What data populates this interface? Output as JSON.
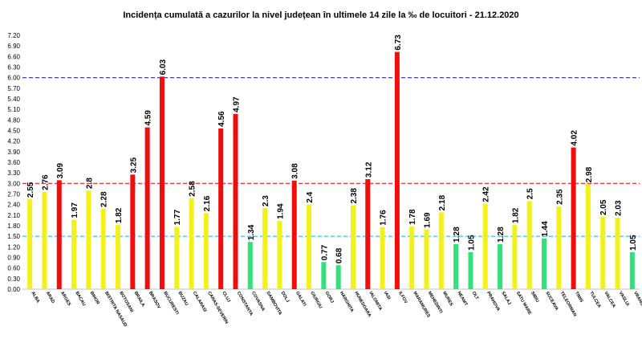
{
  "chart_data": {
    "type": "bar",
    "title": "Incidența cumulată a cazurilor la nivel județean în ultimele 14 zile la ‰ de locuitori - 21.12.2020",
    "xlabel": "",
    "ylabel": "",
    "ylim": [
      0,
      7.2
    ],
    "yticks": [
      "0.00",
      "0.30",
      "0.60",
      "0.90",
      "1.20",
      "1.50",
      "1.80",
      "2.10",
      "2.40",
      "2.70",
      "3.00",
      "3.30",
      "3.60",
      "3.90",
      "4.20",
      "4.50",
      "4.80",
      "5.10",
      "5.40",
      "5.70",
      "6.00",
      "6.30",
      "6.60",
      "6.90",
      "7.20"
    ],
    "categories": [
      "ALBA",
      "ARAD",
      "ARGES",
      "BACAU",
      "BIHOR",
      "BISTRITA NASAUD",
      "BOTOSANI",
      "BRAILA",
      "BRASOV",
      "BUCURESTI",
      "BUZAU",
      "CALARASI",
      "CARAS-SEVERIN",
      "CLUJ",
      "CONSTANTA",
      "COVASNA",
      "DAMBOVITA",
      "DOLJ",
      "GALATI",
      "GIURGIU",
      "GORJ",
      "HARGHITA",
      "HUNEDOARA",
      "IALOMITA",
      "IASI",
      "ILFOV",
      "MARAMURES",
      "MEHEDINTI",
      "MURES",
      "NEAMT",
      "OLT",
      "PRAHOVA",
      "SALAJ",
      "SATU MARE",
      "SIBIU",
      "SUCEAVA",
      "TELEORMAN",
      "TIMIS",
      "TULCEA",
      "VALCEA",
      "VASLUI",
      "VRANCEA"
    ],
    "values": [
      2.55,
      2.76,
      3.09,
      1.97,
      2.8,
      2.28,
      1.82,
      3.25,
      4.59,
      6.03,
      1.77,
      2.58,
      2.16,
      4.56,
      4.97,
      1.34,
      2.3,
      1.94,
      3.08,
      2.4,
      0.77,
      0.68,
      2.38,
      3.12,
      1.76,
      6.73,
      1.78,
      1.69,
      2.18,
      1.28,
      1.05,
      2.42,
      1.28,
      1.82,
      2.5,
      1.44,
      2.35,
      4.02,
      2.98,
      2.05,
      2.03,
      1.05
    ],
    "value_labels": [
      "2.55",
      "2.76",
      "3.09",
      "1.97",
      "2.8",
      "2.28",
      "1.82",
      "3.25",
      "4.59",
      "6.03",
      "1.77",
      "2.58",
      "2.16",
      "4.56",
      "4.97",
      "1.34",
      "2.3",
      "1.94",
      "3.08",
      "2.4",
      "0.77",
      "0.68",
      "2.38",
      "3.12",
      "1.76",
      "6.73",
      "1.78",
      "1.69",
      "2.18",
      "1.28",
      "1.05",
      "2.42",
      "1.28",
      "1.82",
      "2.5",
      "1.44",
      "2.35",
      "4.02",
      "2.98",
      "2.05",
      "2.03",
      "1.05"
    ],
    "thresholds": [
      {
        "value": 1.5,
        "color": "#2eb5e8"
      },
      {
        "value": 3.0,
        "color": "#e02020"
      },
      {
        "value": 6.0,
        "color": "#3a1fb0"
      }
    ],
    "colors": {
      "green": "#33e07a",
      "yellow": "#f2f21a",
      "red": "#f20d0d"
    },
    "grid": false
  }
}
